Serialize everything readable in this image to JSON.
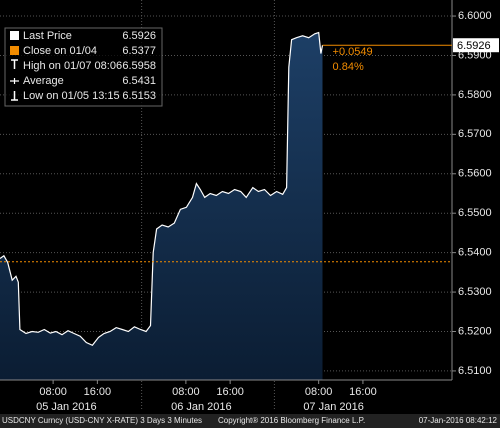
{
  "chart_data": {
    "type": "line",
    "series": [
      {
        "name": "Last Price",
        "color": "#ffffff",
        "x": [
          -1.6,
          -0.9,
          -0.2,
          0.6,
          1.3,
          1.7,
          2.0,
          3.1,
          4.2,
          5.3,
          6.4,
          7.5,
          8.5,
          9.6,
          10.7,
          11.8,
          12.9,
          14.0,
          15.1,
          16.2,
          17.2,
          18.3,
          19.4,
          20.5,
          21.6,
          22.7,
          23.8,
          24.8,
          25.6,
          26.1,
          26.7,
          27.7,
          28.8,
          29.9,
          31.0,
          32.1,
          33.2,
          33.9,
          34.6,
          35.4,
          36.4,
          37.5,
          38.6,
          39.7,
          40.8,
          41.9,
          42.9,
          44.1,
          45.1,
          46.2,
          47.3,
          48.4,
          49.5,
          50.2,
          50.6,
          51.1,
          52.0,
          53.1,
          54.2,
          55.3,
          56.0,
          56.4,
          56.7
        ],
        "values": [
          6.5385,
          6.5392,
          6.5375,
          6.533,
          6.534,
          6.5325,
          6.5205,
          6.5195,
          6.52,
          6.5198,
          6.5205,
          6.5196,
          6.52,
          6.5192,
          6.5202,
          6.5195,
          6.5188,
          6.5172,
          6.5165,
          6.5185,
          6.5195,
          6.52,
          6.521,
          6.5205,
          6.52,
          6.5212,
          6.5205,
          6.52,
          6.5215,
          6.54,
          6.546,
          6.547,
          6.5465,
          6.5475,
          6.551,
          6.5515,
          6.554,
          6.5575,
          6.556,
          6.554,
          6.555,
          6.5545,
          6.5555,
          6.555,
          6.556,
          6.5555,
          6.554,
          6.5565,
          6.5555,
          6.556,
          6.5545,
          6.5555,
          6.5548,
          6.5565,
          6.587,
          6.594,
          6.5945,
          6.595,
          6.5945,
          6.5955,
          6.5958,
          6.5905,
          6.5926
        ]
      }
    ],
    "legend": [
      {
        "name": "Last Price",
        "value": 6.5926,
        "color": "#ffffff"
      },
      {
        "name": "Close on 01/04",
        "value": 6.5377,
        "color": "#f28c00"
      },
      {
        "name": "High on 01/07 08:06",
        "value": 6.5958
      },
      {
        "name": "Average",
        "value": 6.5431
      },
      {
        "name": "Low on 01/05 13:15",
        "value": 6.5153
      }
    ],
    "annotations": [
      "+0.0549",
      "0.84%"
    ],
    "xlim": [
      -1.6,
      80.1
    ],
    "xticks": [
      {
        "value": 8,
        "label": "08:00"
      },
      {
        "value": 16,
        "label": "16:00"
      },
      {
        "value": 32,
        "label": "08:00"
      },
      {
        "value": 40,
        "label": "16:00"
      },
      {
        "value": 56,
        "label": "08:00"
      },
      {
        "value": 64,
        "label": "16:00"
      }
    ],
    "date_labels": [
      {
        "value": 10.4,
        "label": "05 Jan 2016"
      },
      {
        "value": 34.8,
        "label": "06 Jan 2016"
      },
      {
        "value": 58.7,
        "label": "07 Jan 2016"
      }
    ],
    "ylim": [
      6.5077,
      6.6028
    ],
    "yticks": [
      {
        "value": 6.51,
        "label": "6.5100"
      },
      {
        "value": 6.52,
        "label": "6.5200"
      },
      {
        "value": 6.53,
        "label": "6.5300"
      },
      {
        "value": 6.54,
        "label": "6.5400"
      },
      {
        "value": 6.55,
        "label": "6.5500"
      },
      {
        "value": 6.56,
        "label": "6.5600"
      },
      {
        "value": 6.57,
        "label": "6.5700"
      },
      {
        "value": 6.58,
        "label": "6.5800"
      },
      {
        "value": 6.59,
        "label": "6.5900"
      },
      {
        "value": 6.6,
        "label": "6.6000"
      }
    ],
    "grid": true,
    "footer": [
      "USDCNY Curncy (USD-CNY X-RATE) 3 Days 3 Minutes",
      "Copyright® 2016 Bloomberg Finance L.P.",
      "07-Jan-2016 08:42:12"
    ]
  }
}
